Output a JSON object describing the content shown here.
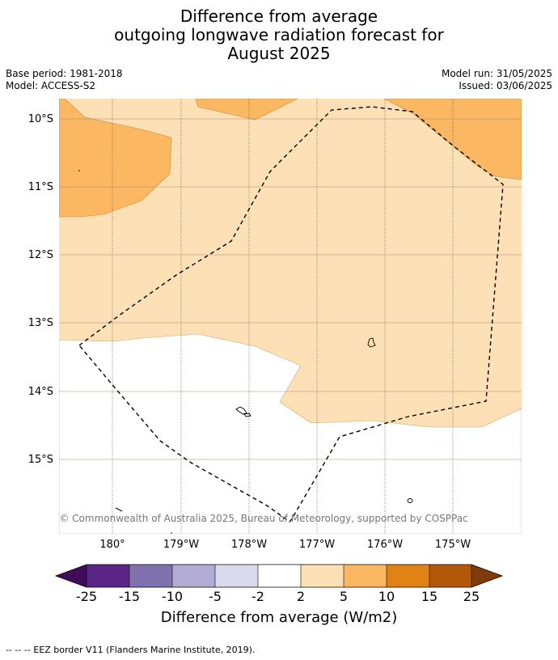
{
  "title": {
    "line1": "Difference from average",
    "line2": "outgoing longwave radiation forecast for",
    "line3": "August 2025"
  },
  "meta": {
    "base_period": "Base period: 1981-2018",
    "model": "Model: ACCESS-S2",
    "model_run": "Model run: 31/05/2025",
    "issued": "Issued: 03/06/2025"
  },
  "map": {
    "lat_labels": [
      "10°S",
      "11°S",
      "12°S",
      "13°S",
      "14°S",
      "15°S"
    ],
    "lon_labels": [
      "180°",
      "179°W",
      "178°W",
      "177°W",
      "176°W",
      "175°W"
    ],
    "copyright": "© Commonwealth of Australia 2025, Bureau of Meteorology, supported by COSPPac",
    "colors": {
      "band_2_5": "#fde0b6",
      "band_5_10": "#fbb762",
      "land_outline": "#000000",
      "eez_border": "#000000"
    }
  },
  "colorbar": {
    "ticks": [
      "-25",
      "-15",
      "-10",
      "-5",
      "-2",
      "2",
      "5",
      "10",
      "15",
      "25"
    ],
    "colors": [
      "#3f0c5a",
      "#5a2585",
      "#8072ae",
      "#b2abd3",
      "#d8daeb",
      "#ffffff",
      "#fde0b6",
      "#fbb762",
      "#e08214",
      "#b35806",
      "#7f3b08"
    ],
    "label": "Difference from average (W/m2)"
  },
  "footer": {
    "legend_symbol": "--  --  --",
    "legend_text": "EEZ border V11 (Flanders Marine Institute, 2019)."
  }
}
